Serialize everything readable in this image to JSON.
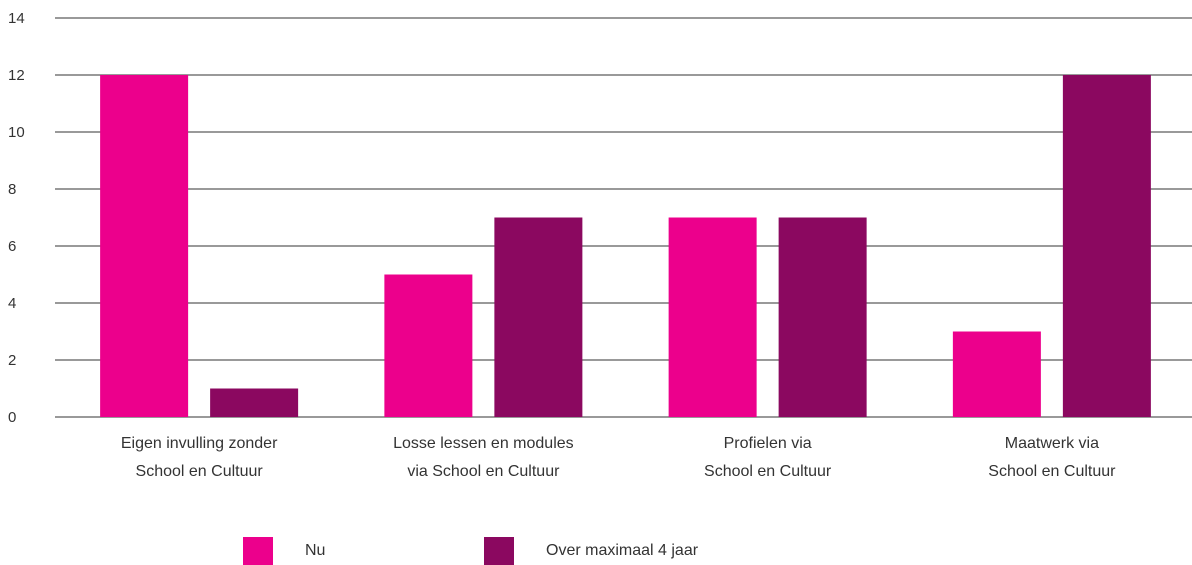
{
  "chart_data": {
    "type": "bar",
    "categories": [
      [
        "Eigen invulling zonder",
        "School en Cultuur"
      ],
      [
        "Losse lessen en modules",
        "via School en Cultuur"
      ],
      [
        "Profielen via",
        "School en Cultuur"
      ],
      [
        "Maatwerk via",
        "School en Cultuur"
      ]
    ],
    "series": [
      {
        "name": "Nu",
        "values": [
          12,
          5,
          7,
          3
        ],
        "color": "#ec008c"
      },
      {
        "name": "Over maximaal 4 jaar",
        "values": [
          1,
          7,
          7,
          12
        ],
        "color": "#8b0860"
      }
    ],
    "ylim": [
      0,
      14
    ],
    "yticks": [
      0,
      2,
      4,
      6,
      8,
      10,
      12,
      14
    ],
    "grid": true,
    "legend_position": "bottom"
  }
}
